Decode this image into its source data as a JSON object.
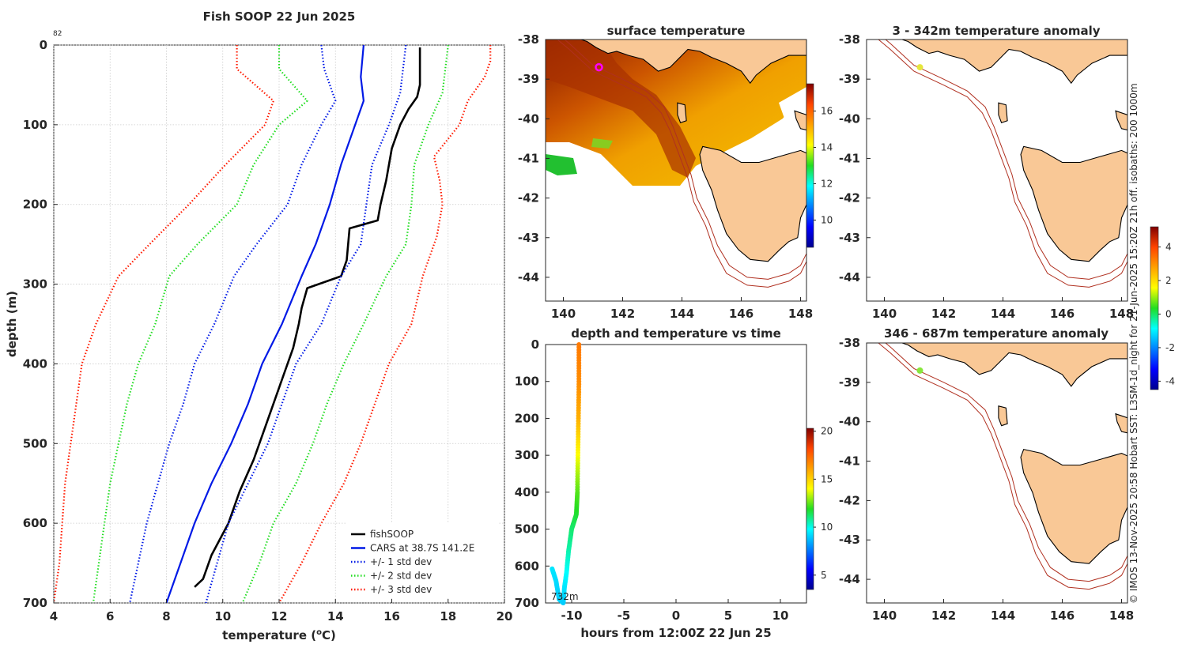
{
  "main": {
    "title": "Fish SOOP 22 Jun 2025",
    "xlabel_prefix": "temperature (",
    "xlabel_sup": "o",
    "xlabel_suffix": "C)",
    "ylabel": "depth (m)",
    "corner_count": "82",
    "xlim": [
      4,
      20
    ],
    "ylim": [
      0,
      700
    ],
    "xticks": [
      4,
      6,
      8,
      10,
      12,
      14,
      16,
      18,
      20
    ],
    "yticks": [
      0,
      100,
      200,
      300,
      400,
      500,
      600,
      700
    ]
  },
  "legend": [
    {
      "label": "fishSOOP",
      "color": "#000000",
      "dash": false
    },
    {
      "label": "CARS at 38.7S 141.2E",
      "color": "#0019e6",
      "dash": false
    },
    {
      "label": "+/- 1 std dev",
      "color": "#0019e6",
      "dash": true
    },
    {
      "label": "+/- 2 std dev",
      "color": "#22dd22",
      "dash": true
    },
    {
      "label": "+/- 3 std dev",
      "color": "#ff1a00",
      "dash": true
    }
  ],
  "chart_data": [
    {
      "type": "line",
      "title": "Fish SOOP 22 Jun 2025",
      "xlabel": "temperature (oC)",
      "ylabel": "depth (m)",
      "xlim": [
        4,
        20
      ],
      "ylim": [
        700,
        0
      ],
      "grid": true,
      "legend_position": "bottom-right",
      "series": [
        {
          "name": "fishSOOP",
          "color": "#000000",
          "points": [
            [
              17.0,
              3
            ],
            [
              17.0,
              50
            ],
            [
              16.9,
              65
            ],
            [
              16.6,
              80
            ],
            [
              16.3,
              100
            ],
            [
              16.0,
              130
            ],
            [
              15.8,
              170
            ],
            [
              15.6,
              200
            ],
            [
              15.5,
              220
            ],
            [
              14.5,
              230
            ],
            [
              14.4,
              270
            ],
            [
              14.2,
              290
            ],
            [
              13.0,
              305
            ],
            [
              12.8,
              330
            ],
            [
              12.7,
              350
            ],
            [
              12.5,
              380
            ],
            [
              12.2,
              410
            ],
            [
              11.9,
              440
            ],
            [
              11.5,
              480
            ],
            [
              11.1,
              520
            ],
            [
              10.6,
              560
            ],
            [
              10.2,
              600
            ],
            [
              9.6,
              640
            ],
            [
              9.3,
              670
            ],
            [
              9.0,
              680
            ]
          ]
        },
        {
          "name": "CARS at 38.7S 141.2E",
          "color": "#0019e6",
          "points": [
            [
              15.0,
              0
            ],
            [
              14.9,
              40
            ],
            [
              15.0,
              70
            ],
            [
              14.7,
              100
            ],
            [
              14.2,
              150
            ],
            [
              13.8,
              200
            ],
            [
              13.3,
              250
            ],
            [
              12.8,
              290
            ],
            [
              12.1,
              350
            ],
            [
              11.4,
              400
            ],
            [
              10.9,
              450
            ],
            [
              10.3,
              500
            ],
            [
              9.6,
              550
            ],
            [
              9.0,
              600
            ],
            [
              8.5,
              650
            ],
            [
              8.0,
              700
            ]
          ]
        },
        {
          "name": "+/- 1 std dev (upper)",
          "color": "#0019e6",
          "points": [
            [
              16.5,
              0
            ],
            [
              16.3,
              60
            ],
            [
              15.9,
              100
            ],
            [
              15.3,
              150
            ],
            [
              15.1,
              200
            ],
            [
              14.9,
              250
            ],
            [
              14.2,
              290
            ],
            [
              13.5,
              350
            ],
            [
              12.6,
              400
            ],
            [
              12.1,
              450
            ],
            [
              11.6,
              500
            ],
            [
              10.9,
              550
            ],
            [
              10.2,
              600
            ],
            [
              9.8,
              650
            ],
            [
              9.4,
              700
            ]
          ]
        },
        {
          "name": "+/- 1 std dev (lower)",
          "color": "#0019e6",
          "points": [
            [
              13.5,
              0
            ],
            [
              13.6,
              30
            ],
            [
              14.0,
              70
            ],
            [
              13.5,
              100
            ],
            [
              12.8,
              150
            ],
            [
              12.3,
              200
            ],
            [
              11.2,
              250
            ],
            [
              10.4,
              290
            ],
            [
              9.7,
              350
            ],
            [
              9.0,
              400
            ],
            [
              8.6,
              450
            ],
            [
              8.1,
              500
            ],
            [
              7.7,
              550
            ],
            [
              7.3,
              600
            ],
            [
              7.0,
              650
            ],
            [
              6.7,
              700
            ]
          ]
        },
        {
          "name": "+/- 2 std dev (upper)",
          "color": "#22dd22",
          "points": [
            [
              18.0,
              0
            ],
            [
              17.8,
              60
            ],
            [
              17.3,
              100
            ],
            [
              16.8,
              150
            ],
            [
              16.7,
              200
            ],
            [
              16.5,
              250
            ],
            [
              15.8,
              290
            ],
            [
              15.0,
              350
            ],
            [
              14.3,
              400
            ],
            [
              13.7,
              450
            ],
            [
              13.2,
              500
            ],
            [
              12.6,
              550
            ],
            [
              11.8,
              600
            ],
            [
              11.3,
              650
            ],
            [
              10.7,
              700
            ]
          ]
        },
        {
          "name": "+/- 2 std dev (lower)",
          "color": "#22dd22",
          "points": [
            [
              12.0,
              0
            ],
            [
              12.0,
              30
            ],
            [
              13.0,
              70
            ],
            [
              12.0,
              100
            ],
            [
              11.1,
              150
            ],
            [
              10.5,
              200
            ],
            [
              9.1,
              250
            ],
            [
              8.1,
              290
            ],
            [
              7.6,
              350
            ],
            [
              7.0,
              400
            ],
            [
              6.6,
              450
            ],
            [
              6.3,
              500
            ],
            [
              6.0,
              550
            ],
            [
              5.8,
              600
            ],
            [
              5.6,
              650
            ],
            [
              5.4,
              700
            ]
          ]
        },
        {
          "name": "+/- 3 std dev (upper)",
          "color": "#ff1a00",
          "points": [
            [
              19.5,
              0
            ],
            [
              19.5,
              20
            ],
            [
              19.3,
              40
            ],
            [
              18.7,
              70
            ],
            [
              18.4,
              100
            ],
            [
              17.5,
              140
            ],
            [
              17.7,
              170
            ],
            [
              17.8,
              200
            ],
            [
              17.6,
              240
            ],
            [
              17.1,
              290
            ],
            [
              16.7,
              350
            ],
            [
              15.9,
              400
            ],
            [
              15.4,
              450
            ],
            [
              14.9,
              500
            ],
            [
              14.3,
              550
            ],
            [
              13.5,
              600
            ],
            [
              12.8,
              650
            ],
            [
              12.0,
              700
            ]
          ]
        },
        {
          "name": "+/- 3 std dev (lower)",
          "color": "#ff1a00",
          "points": [
            [
              10.5,
              0
            ],
            [
              10.5,
              30
            ],
            [
              11.8,
              70
            ],
            [
              11.5,
              100
            ],
            [
              10.1,
              150
            ],
            [
              8.8,
              200
            ],
            [
              7.4,
              250
            ],
            [
              6.3,
              290
            ],
            [
              5.5,
              350
            ],
            [
              5.0,
              400
            ],
            [
              4.8,
              450
            ],
            [
              4.6,
              500
            ],
            [
              4.4,
              550
            ],
            [
              4.3,
              600
            ],
            [
              4.2,
              650
            ],
            [
              4.0,
              700
            ]
          ]
        }
      ]
    },
    {
      "type": "heatmap",
      "title": "surface temperature",
      "xlim": [
        139.4,
        148.2
      ],
      "ylim": [
        -44.6,
        -38
      ],
      "xticks": [
        140,
        142,
        144,
        146,
        148
      ],
      "yticks": [
        -38,
        -39,
        -40,
        -41,
        -42,
        -43,
        -44
      ],
      "colorbar_ticks": [
        10,
        12,
        14,
        16
      ],
      "marker": {
        "lon": 141.2,
        "lat": -38.7,
        "color": "#ff00ff"
      }
    },
    {
      "type": "scatter",
      "title": "depth and temperature vs time",
      "xlabel": "hours from 12:00Z 22 Jun 25",
      "xlim": [
        -12.5,
        12.5
      ],
      "ylim": [
        700,
        0
      ],
      "xticks": [
        -10,
        -5,
        0,
        5,
        10
      ],
      "yticks": [
        0,
        100,
        200,
        300,
        400,
        500,
        600,
        700
      ],
      "annotation": "732m",
      "colorbar_ticks": [
        5,
        10,
        15,
        20
      ],
      "points": [
        [
          -9.3,
          0,
          17.0
        ],
        [
          -9.3,
          100,
          16.6
        ],
        [
          -9.35,
          200,
          15.8
        ],
        [
          -9.4,
          300,
          14.0
        ],
        [
          -9.45,
          400,
          12.4
        ],
        [
          -9.55,
          460,
          11.8
        ],
        [
          -10.0,
          500,
          11.2
        ],
        [
          -10.3,
          560,
          10.6
        ],
        [
          -10.5,
          620,
          9.8
        ],
        [
          -10.7,
          660,
          9.4
        ],
        [
          -10.8,
          700,
          9.0
        ],
        [
          -11.2,
          690,
          9.0
        ],
        [
          -11.5,
          640,
          9.2
        ],
        [
          -11.9,
          605,
          9.4
        ]
      ]
    },
    {
      "type": "heatmap",
      "title": "3 - 342m temperature anomaly",
      "xlim": [
        139.4,
        148.2
      ],
      "ylim": [
        -44.6,
        -38
      ],
      "xticks": [
        140,
        142,
        144,
        146,
        148
      ],
      "yticks": [
        -38,
        -39,
        -40,
        -41,
        -42,
        -43,
        -44
      ],
      "marker": {
        "lon": 141.2,
        "lat": -38.7,
        "color": "#e6e63c"
      }
    },
    {
      "type": "heatmap",
      "title": "346 - 687m temperature anomaly",
      "xlim": [
        139.4,
        148.2
      ],
      "ylim": [
        -44.6,
        -38
      ],
      "xticks": [
        140,
        142,
        144,
        146,
        148
      ],
      "yticks": [
        -38,
        -39,
        -40,
        -41,
        -42,
        -43,
        -44
      ],
      "marker": {
        "lon": 141.2,
        "lat": -38.7,
        "color": "#88e63c"
      },
      "colorbar_ticks": [
        -4,
        -2,
        0,
        2,
        4
      ]
    }
  ],
  "panels": {
    "sst_title": "surface temperature",
    "time_title": "depth and temperature vs time",
    "time_xlabel": "hours from 12:00Z 22 Jun 25",
    "time_annotation": "732m",
    "anom1_title": "3 - 342m temperature anomaly",
    "anom2_title": "346 - 687m temperature anomaly"
  },
  "side_note": "© IMOS 13-Nov-2025 20:58 Hobart SST: L3SM-1d_night for 21-Jun-2025 15:20Z 21h off. isobaths: 200  1000m",
  "colors": {
    "land": "#f9c896",
    "isobath": "#b03020",
    "grid": "#d9d9d9"
  }
}
